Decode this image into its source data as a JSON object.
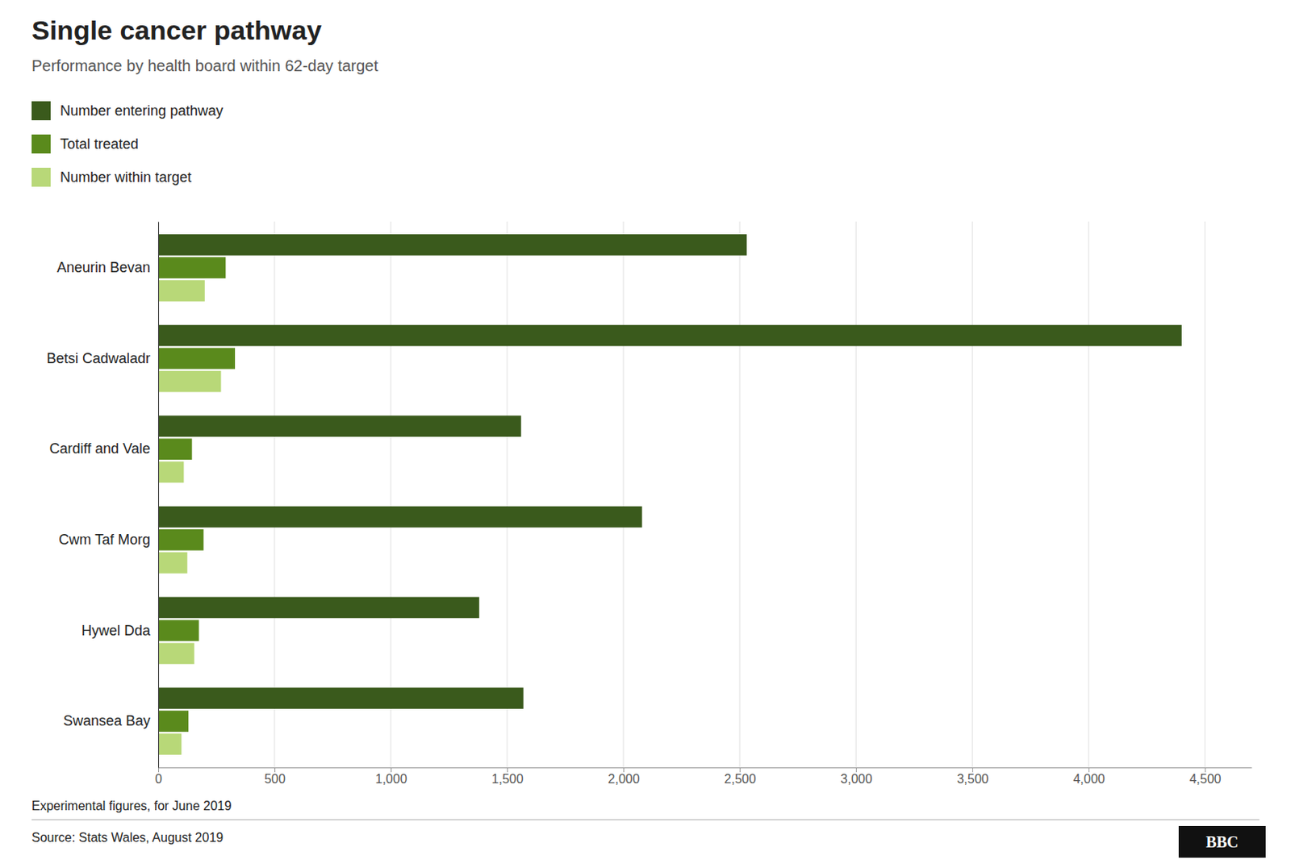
{
  "chart_data": {
    "type": "bar",
    "orientation": "horizontal",
    "title": "Single cancer pathway",
    "subtitle": "Performance by health board within 62-day target",
    "categories": [
      "Aneurin Bevan",
      "Betsi Cadwaladr",
      "Cardiff and Vale",
      "Cwm Taf Morg",
      "Hywel Dda",
      "Swansea Bay"
    ],
    "series": [
      {
        "name": "Number entering pathway",
        "color": "#3a5a1c",
        "values": [
          2530,
          4400,
          1560,
          2080,
          1380,
          1570
        ]
      },
      {
        "name": "Total treated",
        "color": "#5a8a1c",
        "values": [
          290,
          330,
          145,
          195,
          175,
          130
        ]
      },
      {
        "name": "Number within target",
        "color": "#b8d878",
        "values": [
          200,
          270,
          110,
          125,
          155,
          100
        ]
      }
    ],
    "xlim": [
      0,
      4700
    ],
    "xticks": [
      0,
      500,
      {
        "value": 1000,
        "label": "1,000"
      },
      {
        "value": 1500,
        "label": "1,500"
      },
      {
        "value": 2000,
        "label": "2,000"
      },
      {
        "value": 2500,
        "label": "2,500"
      },
      {
        "value": 3000,
        "label": "3,000"
      },
      {
        "value": 3500,
        "label": "3,500"
      },
      {
        "value": 4000,
        "label": "4,000"
      },
      {
        "value": 4500,
        "label": "4,500"
      }
    ],
    "grid": true,
    "annotations": [
      "Experimental figures, for June 2019",
      "Source: Stats Wales, August 2019",
      "BBC"
    ]
  }
}
